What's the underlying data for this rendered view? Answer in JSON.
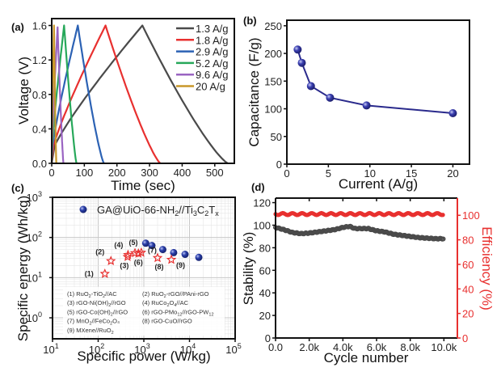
{
  "chart_data": [
    {
      "id": "a",
      "panel_label": "(a)",
      "type": "line",
      "title": "",
      "xlabel": "Time (sec)",
      "ylabel": "Voltage (V)",
      "xlim": [
        0,
        560
      ],
      "ylim": [
        0,
        1.68
      ],
      "xticks": [
        0,
        100,
        200,
        300,
        400,
        500
      ],
      "yticks": [
        0.0,
        0.4,
        0.8,
        1.2,
        1.6
      ],
      "ytick_labels": [
        "0.0",
        "0.4",
        "0.8",
        "1.2",
        "1.6"
      ],
      "legend_position": "top-right",
      "series": [
        {
          "name": "1.3 A/g",
          "color": "#4a4a4a",
          "charge_end": 278,
          "discharge_end": 540,
          "peak": 1.6
        },
        {
          "name": "1.8 A/g",
          "color": "#e8302f",
          "charge_end": 165,
          "discharge_end": 333,
          "peak": 1.6
        },
        {
          "name": "2.9 A/g",
          "color": "#2c62b4",
          "charge_end": 80,
          "discharge_end": 160,
          "peak": 1.6
        },
        {
          "name": "5.2 A/g",
          "color": "#27a85a",
          "charge_end": 38,
          "discharge_end": 76,
          "peak": 1.6
        },
        {
          "name": "9.6 A/g",
          "color": "#9a64c2",
          "charge_end": 18,
          "discharge_end": 36,
          "peak": 1.58
        },
        {
          "name": "20 A/g",
          "color": "#c8972a",
          "charge_end": 7,
          "discharge_end": 14,
          "peak": 1.6
        }
      ]
    },
    {
      "id": "b",
      "panel_label": "(b)",
      "type": "line",
      "title": "",
      "xlabel": "Current (A/g)",
      "ylabel": "Capacitance (F/g)",
      "xlim": [
        0,
        22
      ],
      "ylim": [
        0,
        260
      ],
      "xticks": [
        0,
        5,
        10,
        15,
        20
      ],
      "yticks": [
        0,
        50,
        100,
        150,
        200,
        250
      ],
      "series": [
        {
          "name": "Capacitance",
          "color": "#2a2a8c",
          "x": [
            1.3,
            1.8,
            2.9,
            5.2,
            9.6,
            20
          ],
          "y": [
            207,
            183,
            141,
            120,
            106,
            92
          ]
        }
      ]
    },
    {
      "id": "c",
      "panel_label": "(c)",
      "type": "scatter",
      "title": "",
      "xlabel": "Specific power (W/kg)",
      "ylabel": "Specific energy (Wh/kg)",
      "xscale": "log",
      "yscale": "log",
      "xlim": [
        10,
        100000
      ],
      "ylim": [
        0.3,
        1000
      ],
      "xticks": [
        10,
        100,
        1000,
        10000,
        100000
      ],
      "xtick_labels": [
        [
          "10",
          "1"
        ],
        [
          "10",
          "2"
        ],
        [
          "10",
          "3"
        ],
        [
          "10",
          "4"
        ],
        [
          "10",
          "5"
        ]
      ],
      "yticks": [
        1,
        10,
        100,
        1000
      ],
      "ytick_labels": [
        [
          "10",
          "0"
        ],
        [
          "10",
          "1"
        ],
        [
          "10",
          "2"
        ],
        [
          "10",
          "3"
        ]
      ],
      "grid": true,
      "legend_position": "top",
      "main_series": {
        "name": "GA@UiO-66-NH2//Ti3C2Tx",
        "color": "#2a3ea8",
        "x": [
          1100,
          1500,
          2600,
          4500,
          8000,
          16000
        ],
        "y": [
          72,
          63,
          50,
          42,
          38,
          32
        ]
      },
      "reference_series": {
        "color": "#e8302f",
        "points": [
          {
            "label": "(1)",
            "x": 140,
            "y": 12.5
          },
          {
            "label": "(2)",
            "x": 190,
            "y": 26
          },
          {
            "label": "(3)",
            "x": 440,
            "y": 33
          },
          {
            "label": "(4)",
            "x": 450,
            "y": 37
          },
          {
            "label": "(5)",
            "x": 640,
            "y": 41
          },
          {
            "label": "(6)",
            "x": 760,
            "y": 40
          },
          {
            "label": "(7)",
            "x": 880,
            "y": 42
          },
          {
            "label": "(8)",
            "x": 2000,
            "y": 31
          },
          {
            "label": "(9)",
            "x": 4000,
            "y": 28
          }
        ]
      },
      "reference_legend": [
        {
          "num": "(1)",
          "name": "RuO",
          "s1": "2",
          "m": "-TiO",
          "s2": "2",
          "e": "//AC"
        },
        {
          "num": "(2)",
          "name": "RuO",
          "s1": "2",
          "m": "-rGO//PAni-rGO",
          "s2": "",
          "e": ""
        },
        {
          "num": "(3)",
          "name": "rGO-Ni(OH)",
          "s1": "2",
          "m": "//rGO",
          "s2": "",
          "e": ""
        },
        {
          "num": "(4)",
          "name": "RuCo",
          "s1": "2",
          "m": "O",
          "s2": "4",
          "e": "//AC"
        },
        {
          "num": "(5)",
          "name": "rGO-Co(OH)",
          "s1": "2",
          "m": "//rGO",
          "s2": "",
          "e": ""
        },
        {
          "num": "(6)",
          "name": "rGO-PMo",
          "s1": "12",
          "m": "//rGO-PW",
          "s2": "12",
          "e": ""
        },
        {
          "num": "(7)",
          "name": "MnO",
          "s1": "2",
          "m": "//FeCo",
          "s2": "2",
          "e": "O₄"
        },
        {
          "num": "(8)",
          "name": "rGO-CuO//rGO",
          "s1": "",
          "m": "",
          "s2": "",
          "e": ""
        },
        {
          "num": "(9)",
          "name": "MXene//RuO",
          "s1": "2",
          "m": "",
          "s2": "",
          "e": ""
        }
      ]
    },
    {
      "id": "d",
      "panel_label": "(d)",
      "type": "line",
      "title": "",
      "xlabel": "Cycle number",
      "ylabel": "Stability (%)",
      "y2label": "Efficiency (%)",
      "xlim": [
        0,
        10800
      ],
      "ylim": [
        0,
        124
      ],
      "y2lim": [
        0,
        114
      ],
      "xticks": [
        0,
        2000,
        4000,
        6000,
        8000,
        10000
      ],
      "xtick_labels": [
        "0.0",
        "2.0k",
        "4.0k",
        "6.0k",
        "8.0k",
        "10.0k"
      ],
      "yticks": [
        0,
        20,
        40,
        60,
        80,
        100,
        120
      ],
      "y2ticks": [
        0,
        20,
        40,
        60,
        80,
        100
      ],
      "series": [
        {
          "name": "Stability",
          "axis": "left",
          "color": "#4a4a4a",
          "x": [
            0,
            500,
            1000,
            1500,
            2000,
            2500,
            3000,
            3500,
            4000,
            4400,
            4700,
            5000,
            5500,
            6000,
            6500,
            7000,
            7500,
            8000,
            8500,
            9000,
            9500,
            10000
          ],
          "y": [
            98,
            96,
            93.5,
            92.5,
            93,
            94,
            95,
            96,
            98,
            99,
            97,
            97,
            97,
            95,
            94,
            92,
            91,
            90,
            89,
            88.5,
            88,
            88
          ]
        },
        {
          "name": "Efficiency",
          "axis": "right",
          "color": "#e8302f",
          "x": [
            0,
            10000
          ],
          "y": [
            101,
            101
          ]
        }
      ]
    }
  ]
}
